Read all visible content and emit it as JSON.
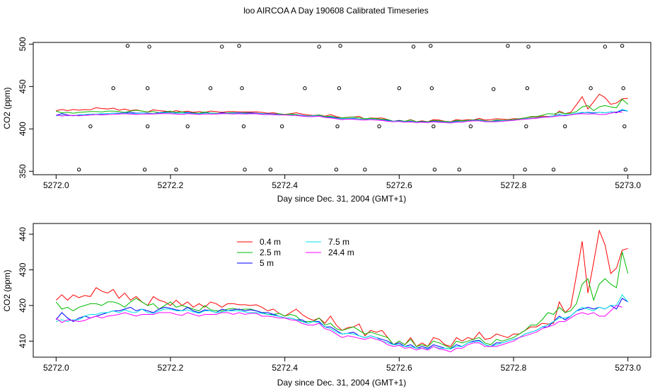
{
  "figure_title": "loo AIRCOA A  Day 190608  Calibrated Timeseries",
  "chart_data": [
    {
      "type": "scatter",
      "xlabel": "Day since Dec. 31, 2004 (GMT+1)",
      "ylabel": "CO2 (ppm)",
      "xlim": [
        5271.96,
        5273.04
      ],
      "ylim": [
        346,
        502
      ],
      "xticks": [
        5272.0,
        5272.2,
        5272.4,
        5272.6,
        5272.8,
        5273.0
      ],
      "xtick_labels": [
        "5272.0",
        "5272.2",
        "5272.4",
        "5272.6",
        "5272.8",
        "5273.0"
      ],
      "yticks": [
        350,
        400,
        450,
        500
      ],
      "ytick_labels": [
        "350",
        "400",
        "450",
        "500"
      ],
      "reference_points": {
        "symbol": "open-circle",
        "points": [
          [
            5272.04,
            352
          ],
          [
            5272.06,
            403
          ],
          [
            5272.1,
            448
          ],
          [
            5272.125,
            498
          ],
          [
            5272.155,
            352
          ],
          [
            5272.16,
            403
          ],
          [
            5272.16,
            448
          ],
          [
            5272.163,
            497
          ],
          [
            5272.21,
            352
          ],
          [
            5272.23,
            403
          ],
          [
            5272.27,
            448
          ],
          [
            5272.29,
            497
          ],
          [
            5272.32,
            498
          ],
          [
            5272.325,
            448
          ],
          [
            5272.328,
            403
          ],
          [
            5272.33,
            352
          ],
          [
            5272.375,
            352
          ],
          [
            5272.395,
            403
          ],
          [
            5272.435,
            448
          ],
          [
            5272.46,
            497
          ],
          [
            5272.49,
            352
          ],
          [
            5272.492,
            403
          ],
          [
            5272.495,
            448
          ],
          [
            5272.497,
            498
          ],
          [
            5272.54,
            352
          ],
          [
            5272.565,
            403
          ],
          [
            5272.6,
            448
          ],
          [
            5272.625,
            497
          ],
          [
            5272.655,
            498
          ],
          [
            5272.657,
            448
          ],
          [
            5272.66,
            403
          ],
          [
            5272.662,
            352
          ],
          [
            5272.705,
            352
          ],
          [
            5272.725,
            403
          ],
          [
            5272.765,
            447
          ],
          [
            5272.79,
            498
          ],
          [
            5272.82,
            352
          ],
          [
            5272.822,
            403
          ],
          [
            5272.824,
            448
          ],
          [
            5272.826,
            497
          ],
          [
            5272.87,
            352
          ],
          [
            5272.89,
            403
          ],
          [
            5272.935,
            448
          ],
          [
            5272.96,
            497
          ],
          [
            5272.99,
            498
          ],
          [
            5272.992,
            448
          ],
          [
            5272.994,
            403
          ],
          [
            5272.996,
            352
          ]
        ]
      },
      "series_ref": "lower_panel"
    },
    {
      "type": "line",
      "xlabel": "Day since Dec. 31, 2004 (GMT+1)",
      "ylabel": "CO2 (ppm)",
      "xlim": [
        5271.96,
        5273.04
      ],
      "ylim": [
        405.5,
        443
      ],
      "xticks": [
        5272.0,
        5272.2,
        5272.4,
        5272.6,
        5272.8,
        5273.0
      ],
      "xtick_labels": [
        "5272.0",
        "5272.2",
        "5272.4",
        "5272.6",
        "5272.8",
        "5273.0"
      ],
      "yticks": [
        410,
        420,
        430,
        440
      ],
      "ytick_labels": [
        "410",
        "420",
        "430",
        "440"
      ],
      "legend": {
        "placement": "top-left",
        "columns": [
          [
            {
              "label": "0.4 m",
              "color": "#ff0000"
            },
            {
              "label": "2.5 m",
              "color": "#00bb00"
            },
            {
              "label": "5 m",
              "color": "#0000ff"
            }
          ],
          [
            {
              "label": "7.5 m",
              "color": "#00e5e5"
            },
            {
              "label": "24.4 m",
              "color": "#ff00ff"
            }
          ]
        ]
      },
      "x_start": 5272.0,
      "x_step": 0.01,
      "series": [
        {
          "name": "0.4 m",
          "color": "#ff0000",
          "values": [
            421.5,
            423,
            421.5,
            423,
            422.2,
            422.8,
            422.5,
            425,
            424,
            423.5,
            424.5,
            422,
            423.5,
            421.5,
            422.5,
            421,
            420,
            422.5,
            421.5,
            421,
            420,
            421.5,
            420,
            421,
            419.5,
            420.5,
            419.5,
            421,
            420.5,
            419.5,
            420.5,
            420.5,
            420.2,
            420.2,
            420,
            420.2,
            419.5,
            418.5,
            419,
            417.8,
            417,
            418,
            419,
            417.5,
            416.5,
            415.8,
            416.5,
            415,
            417,
            414.5,
            413,
            413.8,
            414,
            414.8,
            411.5,
            413,
            412.5,
            413,
            411,
            409,
            410,
            409,
            411,
            408.5,
            409.5,
            408.5,
            411,
            410.5,
            409,
            408.5,
            411,
            410,
            411,
            410.5,
            412.5,
            410.5,
            410.8,
            412,
            411.5,
            411,
            412,
            412,
            413,
            414,
            414,
            415,
            414.8,
            415,
            421,
            418,
            419.5,
            428.5,
            438,
            423.5,
            432,
            441,
            437,
            429,
            430.5,
            435.5,
            436
          ]
        },
        {
          "name": "2.5 m",
          "color": "#00bb00",
          "values": [
            421,
            419,
            419.5,
            418.5,
            419.5,
            420,
            420.5,
            420.5,
            420,
            421,
            421,
            420.5,
            419.5,
            421,
            422,
            421,
            420,
            420.5,
            419,
            420,
            421,
            419.5,
            420,
            419.5,
            419,
            418.5,
            420,
            418.8,
            418.5,
            418.5,
            419,
            419.2,
            418.8,
            419,
            419,
            418.5,
            418,
            417.5,
            417.5,
            417.8,
            417,
            417.5,
            417,
            415.5,
            415.5,
            415.5,
            416.5,
            414.5,
            415,
            413.5,
            413,
            413.5,
            414,
            413,
            412,
            412.5,
            412,
            411.5,
            411,
            409,
            410,
            409,
            410.5,
            408.5,
            409,
            408.5,
            410,
            409.5,
            408.8,
            408,
            410,
            409.5,
            410,
            410.5,
            411,
            409.5,
            409,
            410.5,
            410,
            410.5,
            411,
            412,
            413,
            414.5,
            414.5,
            416,
            418,
            417.5,
            419.5,
            418,
            418.5,
            420.5,
            426,
            427.5,
            421.5,
            426,
            427.5,
            426,
            425,
            435,
            429
          ]
        },
        {
          "name": "5 m",
          "color": "#0000ff",
          "values": [
            416,
            418,
            416.5,
            415.5,
            416.5,
            417,
            416.5,
            417,
            417.5,
            418,
            418.5,
            418.5,
            419,
            419.5,
            418.5,
            419,
            418.5,
            418,
            419,
            419.5,
            419.2,
            418.8,
            418.5,
            419.5,
            418.5,
            418,
            418.8,
            418.5,
            418,
            419,
            418.5,
            418.8,
            419,
            418.5,
            418.8,
            418.5,
            418,
            418,
            417.5,
            417,
            416.5,
            416.5,
            416,
            416,
            415,
            415.5,
            415.5,
            414,
            414,
            413,
            412,
            412.2,
            412.5,
            411.5,
            411,
            411.5,
            411,
            410.5,
            410,
            409,
            409.5,
            408.5,
            409,
            408,
            408.5,
            408,
            409,
            408.5,
            408,
            407.8,
            409,
            408.5,
            409.5,
            410,
            410.2,
            409,
            408.5,
            409.5,
            409.5,
            410,
            410.5,
            411,
            412,
            412.5,
            413,
            414,
            414,
            415.5,
            417,
            416,
            417,
            418.5,
            419,
            419.5,
            419,
            419.5,
            419,
            420,
            419,
            422,
            421
          ]
        },
        {
          "name": "7.5 m",
          "color": "#00e5e5",
          "values": [
            415.5,
            416,
            415.5,
            416,
            416,
            417,
            417.5,
            417.5,
            418,
            418,
            418.5,
            418,
            418.8,
            418.2,
            418,
            419,
            418,
            417.8,
            418.5,
            419,
            419,
            418.5,
            418.5,
            418.8,
            418.2,
            417.8,
            418.5,
            418.5,
            418,
            418.2,
            418.5,
            418.5,
            418.5,
            418.2,
            418,
            418,
            417.8,
            417.5,
            417.2,
            417,
            416.5,
            416.5,
            416,
            415.5,
            415,
            415.5,
            415.2,
            414,
            413.5,
            412.5,
            412,
            412.2,
            412,
            411.5,
            411,
            411.5,
            411,
            410,
            409.5,
            409,
            409,
            408.5,
            408.5,
            408,
            408,
            407.8,
            408.5,
            408,
            408,
            407.8,
            408.5,
            408.5,
            409.5,
            409.8,
            410,
            409,
            408.5,
            409,
            409.5,
            410,
            410.5,
            411,
            412,
            412.5,
            413,
            414,
            414.5,
            415.5,
            416.5,
            416.5,
            417,
            418.5,
            419.5,
            419,
            418.5,
            419.5,
            419,
            420,
            420,
            423,
            421
          ]
        },
        {
          "name": "24.4 m",
          "color": "#ff00ff",
          "values": [
            416.5,
            415.2,
            416,
            415.8,
            415.5,
            415.8,
            416.5,
            417,
            416.5,
            417,
            417.2,
            417.5,
            418,
            417.5,
            417,
            417.5,
            417.5,
            417.5,
            418,
            418,
            418,
            417.5,
            417.2,
            418,
            417.5,
            417,
            417.5,
            417.5,
            417.5,
            418,
            418,
            417.5,
            418,
            417.5,
            417.8,
            417.8,
            417,
            417,
            416.8,
            416.5,
            416.5,
            416,
            415.8,
            415,
            414.5,
            414.5,
            415,
            413.5,
            413,
            412,
            411,
            411.5,
            411.2,
            410.8,
            410.5,
            411,
            410.5,
            410,
            409,
            408.5,
            408.8,
            408,
            408.2,
            407.5,
            408,
            407.5,
            408.5,
            407.8,
            407.5,
            407,
            408,
            408,
            409,
            409.5,
            409.5,
            408.5,
            408.5,
            408.5,
            409,
            409.5,
            410,
            411,
            411.5,
            412,
            412.5,
            413.5,
            414,
            414.5,
            415.5,
            415.5,
            416.5,
            417.5,
            418,
            417.5,
            418,
            417,
            417,
            418.5,
            420,
            419.5
          ]
        }
      ]
    }
  ]
}
